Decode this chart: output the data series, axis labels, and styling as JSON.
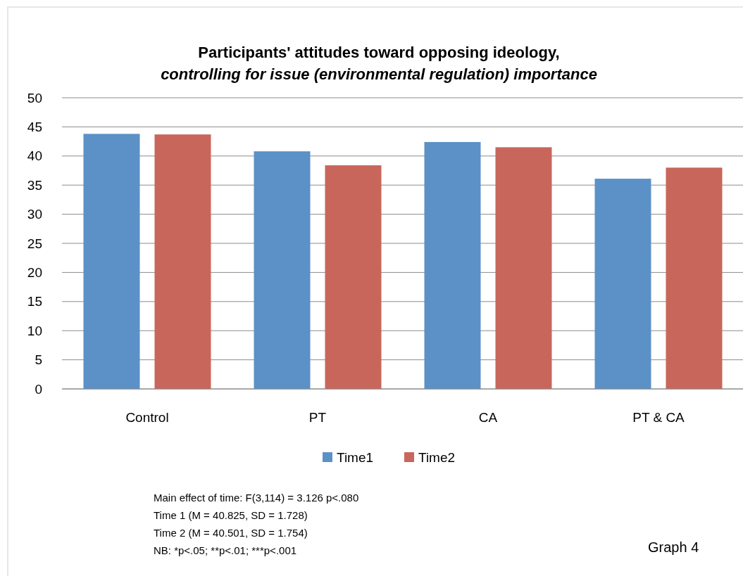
{
  "chart_data": {
    "type": "bar",
    "title": "Participants' attitudes toward opposing ideology,",
    "subtitle": "controlling for  issue (environmental regulation) importance",
    "categories": [
      "Control",
      "PT",
      "CA",
      "PT & CA"
    ],
    "series": [
      {
        "name": "Time1",
        "color": "#5b91c6",
        "values": [
          43.8,
          40.8,
          42.4,
          36.1
        ]
      },
      {
        "name": "Time2",
        "color": "#c9665b",
        "values": [
          43.7,
          38.4,
          41.5,
          38.0
        ]
      }
    ],
    "ylim": [
      0,
      50
    ],
    "yticks": [
      0,
      5,
      10,
      15,
      20,
      25,
      30,
      35,
      40,
      45,
      50
    ],
    "grid": "y",
    "legend": "bottom",
    "annotations": [
      "Main effect of time: F(3,114) =  3.126 p<.080",
      "Time 1 (M = 40.825, SD = 1.728)",
      "Time 2 (M = 40.501, SD = 1.754)",
      "NB: *p<.05; **p<.01; ***p<.001",
      "Graph 4"
    ]
  }
}
